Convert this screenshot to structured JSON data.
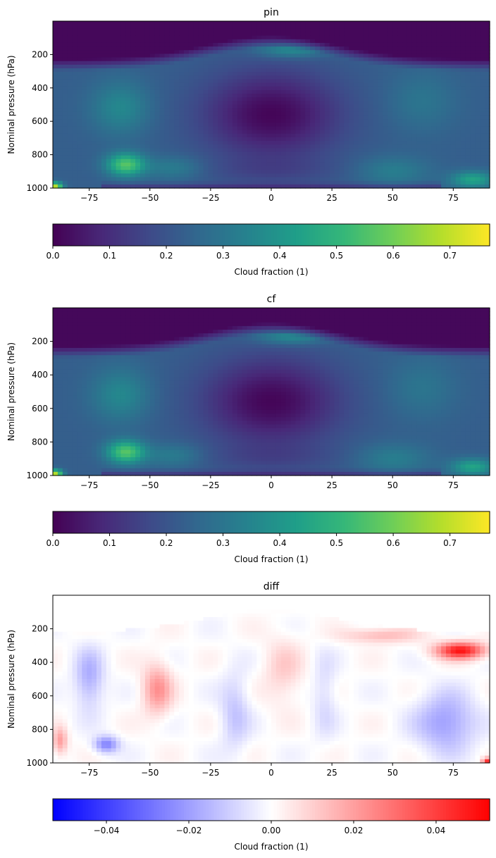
{
  "chart_data": [
    {
      "type": "heatmap",
      "title": "pin",
      "ylabel": "Nominal pressure (hPa)",
      "xlim": [
        -90,
        90
      ],
      "ylim": [
        1000,
        0
      ],
      "x_ticks": [
        "−75",
        "−50",
        "−25",
        "0",
        "25",
        "50",
        "75"
      ],
      "x_tick_values": [
        -75,
        -50,
        -25,
        0,
        25,
        50,
        75
      ],
      "y_ticks": [
        "200",
        "400",
        "600",
        "800",
        "1000"
      ],
      "y_tick_values": [
        200,
        400,
        600,
        800,
        1000
      ],
      "colormap": "viridis",
      "colorbar": {
        "label": "Cloud fraction (1)",
        "range": [
          0,
          0.77
        ],
        "ticks": [
          "0.0",
          "0.1",
          "0.2",
          "0.3",
          "0.4",
          "0.5",
          "0.6",
          "0.7"
        ],
        "tick_values": [
          0,
          0.1,
          0.2,
          0.3,
          0.4,
          0.5,
          0.6,
          0.7
        ],
        "orientation": "horizontal"
      },
      "features": [
        {
          "lat": -87,
          "p": 960,
          "value": 0.77
        },
        {
          "lat": -60,
          "p": 850,
          "value": 0.55
        },
        {
          "lat": -63,
          "p": 500,
          "value": 0.38
        },
        {
          "lat": 8,
          "p": 170,
          "value": 0.38
        },
        {
          "lat": 83,
          "p": 950,
          "value": 0.48
        },
        {
          "lat": 0,
          "p": 550,
          "value": 0.04
        }
      ]
    },
    {
      "type": "heatmap",
      "title": "cf",
      "ylabel": "Nominal pressure (hPa)",
      "xlim": [
        -90,
        90
      ],
      "ylim": [
        1000,
        0
      ],
      "x_ticks": [
        "−75",
        "−50",
        "−25",
        "0",
        "25",
        "50",
        "75"
      ],
      "x_tick_values": [
        -75,
        -50,
        -25,
        0,
        25,
        50,
        75
      ],
      "y_ticks": [
        "200",
        "400",
        "600",
        "800",
        "1000"
      ],
      "y_tick_values": [
        200,
        400,
        600,
        800,
        1000
      ],
      "colormap": "viridis",
      "colorbar": {
        "label": "Cloud fraction (1)",
        "range": [
          0,
          0.77
        ],
        "ticks": [
          "0.0",
          "0.1",
          "0.2",
          "0.3",
          "0.4",
          "0.5",
          "0.6",
          "0.7"
        ],
        "tick_values": [
          0,
          0.1,
          0.2,
          0.3,
          0.4,
          0.5,
          0.6,
          0.7
        ],
        "orientation": "horizontal"
      },
      "features": [
        {
          "lat": -87,
          "p": 960,
          "value": 0.77
        },
        {
          "lat": -60,
          "p": 850,
          "value": 0.55
        },
        {
          "lat": -63,
          "p": 500,
          "value": 0.38
        },
        {
          "lat": 8,
          "p": 170,
          "value": 0.38
        },
        {
          "lat": 83,
          "p": 950,
          "value": 0.48
        },
        {
          "lat": 0,
          "p": 550,
          "value": 0.04
        }
      ]
    },
    {
      "type": "heatmap",
      "title": "diff",
      "ylabel": "Nominal pressure (hPa)",
      "xlim": [
        -90,
        90
      ],
      "ylim": [
        1000,
        0
      ],
      "x_ticks": [
        "−75",
        "−50",
        "−25",
        "0",
        "25",
        "50",
        "75"
      ],
      "x_tick_values": [
        -75,
        -50,
        -25,
        0,
        25,
        50,
        75
      ],
      "y_ticks": [
        "200",
        "400",
        "600",
        "800",
        "1000"
      ],
      "y_tick_values": [
        200,
        400,
        600,
        800,
        1000
      ],
      "colormap": "bwr",
      "colorbar": {
        "label": "Cloud fraction (1)",
        "range": [
          -0.053,
          0.053
        ],
        "ticks": [
          "−0.04",
          "−0.02",
          "0.00",
          "0.02",
          "0.04"
        ],
        "tick_values": [
          -0.04,
          -0.02,
          0,
          0.02,
          0.04
        ],
        "orientation": "horizontal"
      },
      "features": [
        {
          "lat": 78,
          "p": 330,
          "value": 0.045
        },
        {
          "lat": -47,
          "p": 550,
          "value": 0.02
        },
        {
          "lat": -87,
          "p": 850,
          "value": 0.02
        },
        {
          "lat": -68,
          "p": 900,
          "value": -0.025
        },
        {
          "lat": 72,
          "p": 750,
          "value": -0.02
        },
        {
          "lat": -75,
          "p": 500,
          "value": -0.015
        }
      ]
    }
  ]
}
